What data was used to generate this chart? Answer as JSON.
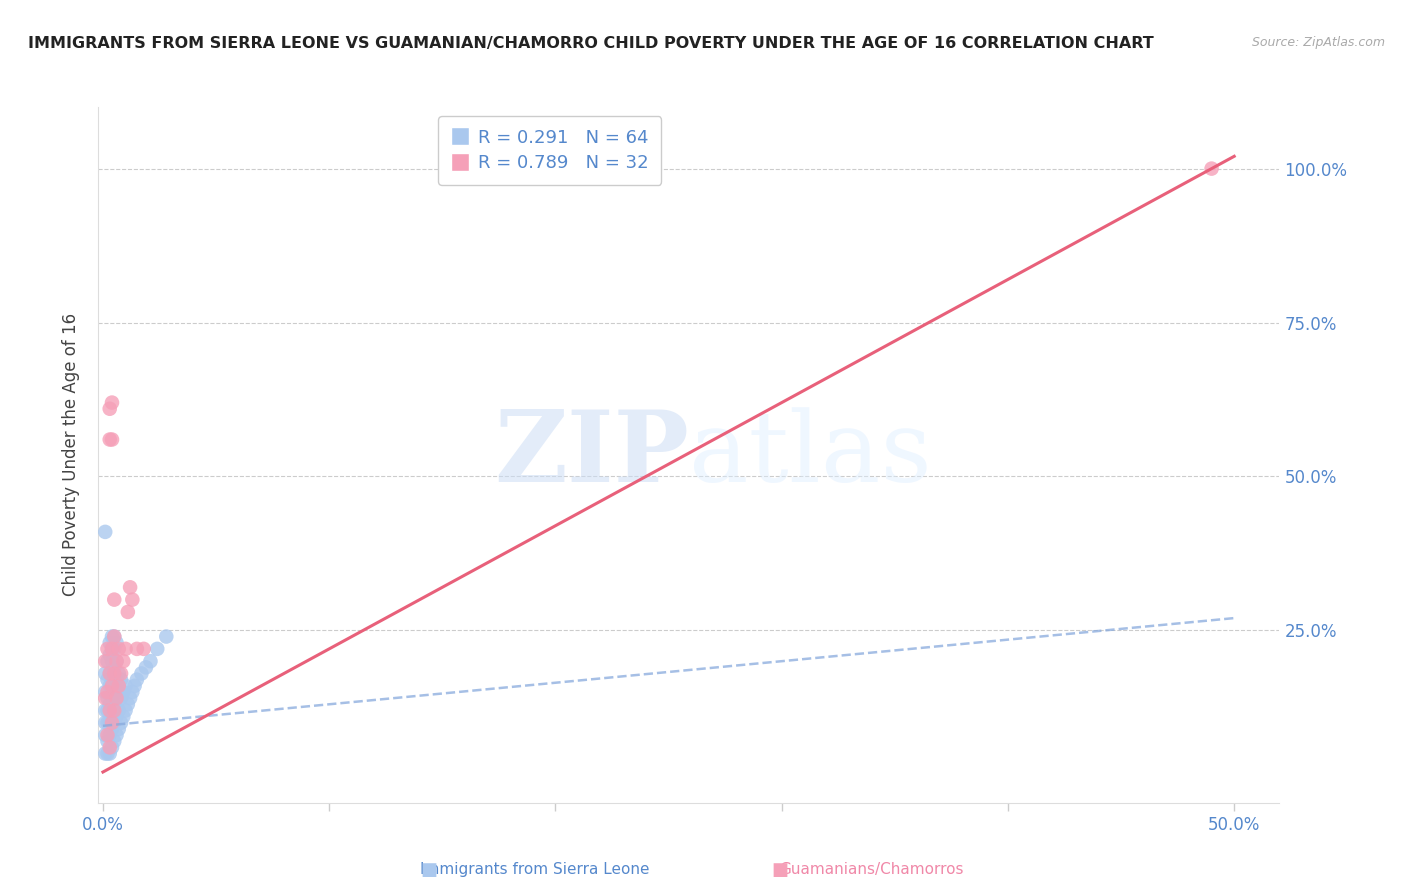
{
  "title": "IMMIGRANTS FROM SIERRA LEONE VS GUAMANIAN/CHAMORRO CHILD POVERTY UNDER THE AGE OF 16 CORRELATION CHART",
  "source": "Source: ZipAtlas.com",
  "ylabel": "Child Poverty Under the Age of 16",
  "yticks": [
    0.0,
    0.25,
    0.5,
    0.75,
    1.0
  ],
  "ytick_labels": [
    "",
    "25.0%",
    "50.0%",
    "75.0%",
    "100.0%"
  ],
  "xticks": [
    0.0,
    0.1,
    0.2,
    0.3,
    0.4,
    0.5
  ],
  "xtick_labels": [
    "0.0%",
    "",
    "",
    "",
    "",
    "50.0%"
  ],
  "xlim": [
    -0.002,
    0.52
  ],
  "ylim": [
    -0.03,
    1.1
  ],
  "legend_blue_R": "0.291",
  "legend_blue_N": "64",
  "legend_pink_R": "0.789",
  "legend_pink_N": "32",
  "label_blue": "Immigrants from Sierra Leone",
  "label_pink": "Guamanians/Chamorros",
  "watermark_zip": "ZIP",
  "watermark_atlas": "atlas",
  "blue_color": "#aac8ee",
  "pink_color": "#f5a0b8",
  "blue_line_color": "#88aadd",
  "pink_line_color": "#e8607a",
  "blue_scatter_x": [
    0.001,
    0.001,
    0.001,
    0.001,
    0.001,
    0.001,
    0.002,
    0.002,
    0.002,
    0.002,
    0.002,
    0.002,
    0.002,
    0.003,
    0.003,
    0.003,
    0.003,
    0.003,
    0.003,
    0.003,
    0.003,
    0.004,
    0.004,
    0.004,
    0.004,
    0.004,
    0.004,
    0.004,
    0.004,
    0.005,
    0.005,
    0.005,
    0.005,
    0.005,
    0.005,
    0.005,
    0.006,
    0.006,
    0.006,
    0.006,
    0.006,
    0.006,
    0.007,
    0.007,
    0.007,
    0.007,
    0.008,
    0.008,
    0.008,
    0.009,
    0.009,
    0.01,
    0.01,
    0.011,
    0.012,
    0.013,
    0.014,
    0.015,
    0.017,
    0.019,
    0.021,
    0.024,
    0.028,
    0.001
  ],
  "blue_scatter_y": [
    0.05,
    0.08,
    0.1,
    0.12,
    0.15,
    0.18,
    0.05,
    0.07,
    0.1,
    0.12,
    0.14,
    0.17,
    0.2,
    0.05,
    0.08,
    0.1,
    0.13,
    0.16,
    0.18,
    0.21,
    0.23,
    0.06,
    0.09,
    0.11,
    0.14,
    0.17,
    0.2,
    0.22,
    0.24,
    0.07,
    0.1,
    0.13,
    0.16,
    0.19,
    0.22,
    0.24,
    0.08,
    0.11,
    0.14,
    0.17,
    0.2,
    0.23,
    0.09,
    0.12,
    0.15,
    0.18,
    0.1,
    0.14,
    0.17,
    0.11,
    0.15,
    0.12,
    0.16,
    0.13,
    0.14,
    0.15,
    0.16,
    0.17,
    0.18,
    0.19,
    0.2,
    0.22,
    0.24,
    0.41
  ],
  "pink_scatter_x": [
    0.001,
    0.001,
    0.002,
    0.002,
    0.002,
    0.003,
    0.003,
    0.003,
    0.003,
    0.003,
    0.004,
    0.004,
    0.004,
    0.004,
    0.004,
    0.005,
    0.005,
    0.005,
    0.005,
    0.006,
    0.006,
    0.007,
    0.007,
    0.008,
    0.009,
    0.01,
    0.011,
    0.012,
    0.013,
    0.015,
    0.018,
    0.49
  ],
  "pink_scatter_y": [
    0.14,
    0.2,
    0.08,
    0.15,
    0.22,
    0.06,
    0.12,
    0.18,
    0.56,
    0.61,
    0.1,
    0.16,
    0.22,
    0.56,
    0.62,
    0.12,
    0.18,
    0.24,
    0.3,
    0.14,
    0.2,
    0.16,
    0.22,
    0.18,
    0.2,
    0.22,
    0.28,
    0.32,
    0.3,
    0.22,
    0.22,
    1.0
  ],
  "blue_line_x0": 0.0,
  "blue_line_x1": 0.5,
  "blue_line_y0": 0.095,
  "blue_line_y1": 0.27,
  "pink_line_x0": 0.0,
  "pink_line_x1": 0.5,
  "pink_line_y0": 0.02,
  "pink_line_y1": 1.02
}
